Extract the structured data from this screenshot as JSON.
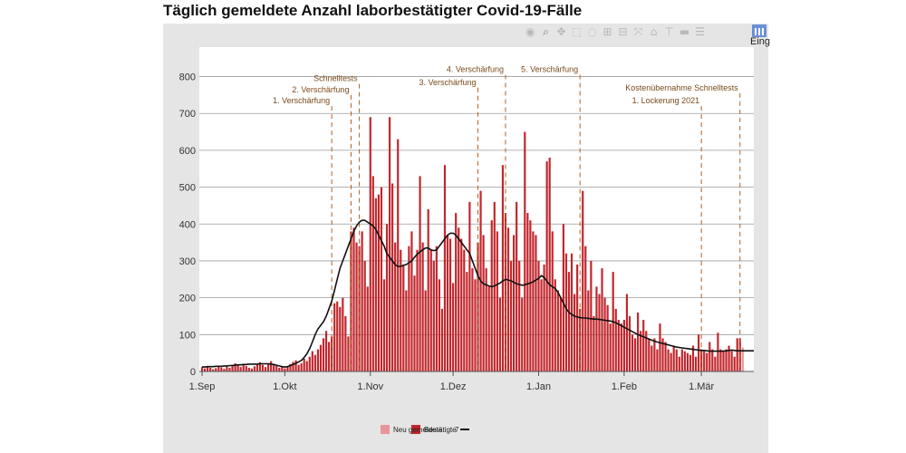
{
  "title": "Täglich gemeldete Anzahl laborbestätigter Covid-19-Fälle",
  "toolbar": {
    "icons": [
      "camera-icon",
      "zoom-icon",
      "pan-icon",
      "box-select-icon",
      "lasso-icon",
      "zoom-in-icon",
      "zoom-out-icon",
      "autoscale-icon",
      "reset-axes-icon",
      "spike-lines-icon",
      "hover-closest-icon",
      "hover-compare-icon"
    ],
    "eing_label": "Eing"
  },
  "colors": {
    "bar": "#c1272d",
    "bar_light": "#e8969a",
    "line": "#111111",
    "annotation": "#b0611f",
    "plot_bg": "#ffffff",
    "outer_bg": "#e5e5e5",
    "grid": "#9b9b9b"
  },
  "chart_data": {
    "type": "bar",
    "title": "Täglich gemeldete Anzahl laborbestätigter Covid-19-Fälle",
    "xlabel": "",
    "ylabel": "",
    "ylim": [
      0,
      880
    ],
    "xlim": [
      "2020-08-31",
      "2021-03-20"
    ],
    "yticks": [
      0,
      100,
      200,
      300,
      400,
      500,
      600,
      700,
      800
    ],
    "xticks": [
      {
        "date": "2020-09-01",
        "label": "1.Sep"
      },
      {
        "date": "2020-10-01",
        "label": "1.Okt"
      },
      {
        "date": "2020-11-01",
        "label": "1.Nov"
      },
      {
        "date": "2020-12-01",
        "label": "1.Dez"
      },
      {
        "date": "2021-01-01",
        "label": "1.Jan"
      },
      {
        "date": "2021-02-01",
        "label": "1.Feb"
      },
      {
        "date": "2021-03-01",
        "label": "1.Mär"
      }
    ],
    "grid": true,
    "legend_position": "bottom-center",
    "legend": [
      {
        "label": "Neu gemeldete",
        "color": "#e8969a"
      },
      {
        "label": "Bestätigte",
        "color": "#c1272d"
      },
      {
        "label": "7",
        "color": "#111111"
      }
    ],
    "series": [
      {
        "name": "Bestätigte",
        "start_date": "2020-09-01",
        "values": [
          12,
          8,
          15,
          10,
          6,
          9,
          14,
          11,
          7,
          13,
          10,
          18,
          22,
          16,
          12,
          20,
          15,
          10,
          8,
          14,
          19,
          25,
          18,
          12,
          22,
          28,
          20,
          15,
          10,
          12,
          8,
          14,
          20,
          26,
          30,
          18,
          22,
          35,
          28,
          40,
          55,
          45,
          60,
          72,
          90,
          110,
          80,
          95,
          185,
          190,
          175,
          200,
          150,
          95,
          380,
          390,
          350,
          340,
          380,
          300,
          230,
          690,
          530,
          470,
          480,
          500,
          250,
          400,
          690,
          510,
          350,
          630,
          330,
          290,
          220,
          340,
          380,
          260,
          330,
          530,
          350,
          220,
          440,
          330,
          300,
          340,
          250,
          170,
          560,
          370,
          360,
          240,
          430,
          390,
          360,
          330,
          270,
          460,
          280,
          250,
          350,
          490,
          370,
          280,
          230,
          410,
          460,
          380,
          200,
          560,
          430,
          390,
          300,
          370,
          460,
          300,
          200,
          650,
          430,
          410,
          380,
          370,
          300,
          250,
          290,
          570,
          580,
          380,
          250,
          220,
          200,
          400,
          320,
          270,
          320,
          210,
          290,
          170,
          490,
          340,
          220,
          300,
          150,
          230,
          210,
          280,
          200,
          180,
          130,
          270,
          170,
          140,
          130,
          140,
          210,
          150,
          100,
          90,
          160,
          110,
          140,
          110,
          90,
          70,
          90,
          60,
          130,
          90,
          80,
          60,
          50,
          70,
          60,
          40,
          60,
          55,
          50,
          45,
          70,
          40,
          100,
          60,
          55,
          50,
          80,
          60,
          40,
          105,
          60,
          55,
          60,
          70,
          55,
          40,
          90,
          90,
          65
        ]
      },
      {
        "name": "7",
        "start_date": "2020-09-01",
        "values": [
          12,
          12,
          13,
          13,
          13,
          14,
          14,
          14,
          15,
          15,
          16,
          16,
          17,
          18,
          18,
          19,
          19,
          20,
          20,
          20,
          20,
          21,
          21,
          21,
          21,
          20,
          19,
          17,
          15,
          13,
          12,
          13,
          16,
          19,
          22,
          26,
          30,
          38,
          48,
          62,
          80,
          100,
          115,
          125,
          135,
          150,
          170,
          190,
          220,
          250,
          280,
          300,
          320,
          340,
          360,
          380,
          395,
          405,
          410,
          410,
          405,
          400,
          395,
          385,
          370,
          355,
          340,
          320,
          310,
          300,
          290,
          285,
          285,
          288,
          290,
          295,
          300,
          310,
          318,
          325,
          330,
          335,
          335,
          330,
          328,
          330,
          340,
          350,
          360,
          370,
          375,
          375,
          370,
          360,
          350,
          340,
          330,
          320,
          300,
          280,
          260,
          245,
          238,
          235,
          232,
          230,
          232,
          236,
          240,
          245,
          250,
          248,
          246,
          242,
          238,
          236,
          234,
          235,
          238,
          240,
          243,
          248,
          252,
          260,
          255,
          245,
          235,
          230,
          225,
          215,
          200,
          185,
          170,
          160,
          155,
          150,
          148,
          146,
          145,
          145,
          144,
          143,
          142,
          142,
          141,
          140,
          139,
          138,
          137,
          135,
          132,
          128,
          124,
          120,
          116,
          112,
          108,
          104,
          100,
          97,
          94,
          91,
          88,
          85,
          82,
          80,
          78,
          76,
          74,
          72,
          70,
          68,
          66,
          65,
          64,
          63,
          62,
          61,
          60,
          59,
          58,
          57,
          57,
          56,
          55,
          55,
          55,
          55,
          55,
          55,
          56,
          57,
          58,
          57,
          56,
          56,
          56,
          56,
          56,
          56,
          56
        ]
      }
    ],
    "annotations": [
      {
        "date": "2020-10-18",
        "label": "1. Verschärfung",
        "y": 720,
        "side": "left"
      },
      {
        "date": "2020-10-25",
        "label": "2. Verschärfung",
        "y": 750,
        "side": "left"
      },
      {
        "date": "2020-10-28",
        "label": "Schnelltests",
        "y": 780,
        "side": "left"
      },
      {
        "date": "2020-12-10",
        "label": "3. Verschärfung",
        "y": 770,
        "side": "left"
      },
      {
        "date": "2020-12-20",
        "label": "4. Verschärfung",
        "y": 805,
        "side": "left"
      },
      {
        "date": "2021-01-16",
        "label": "5. Verschärfung",
        "y": 805,
        "side": "left"
      },
      {
        "date": "2021-03-01",
        "label": "1. Lockerung 2021",
        "y": 720,
        "side": "left"
      },
      {
        "date": "2021-03-15",
        "label": "Kostenübernahme Schnelltests",
        "y": 755,
        "side": "left"
      }
    ]
  }
}
